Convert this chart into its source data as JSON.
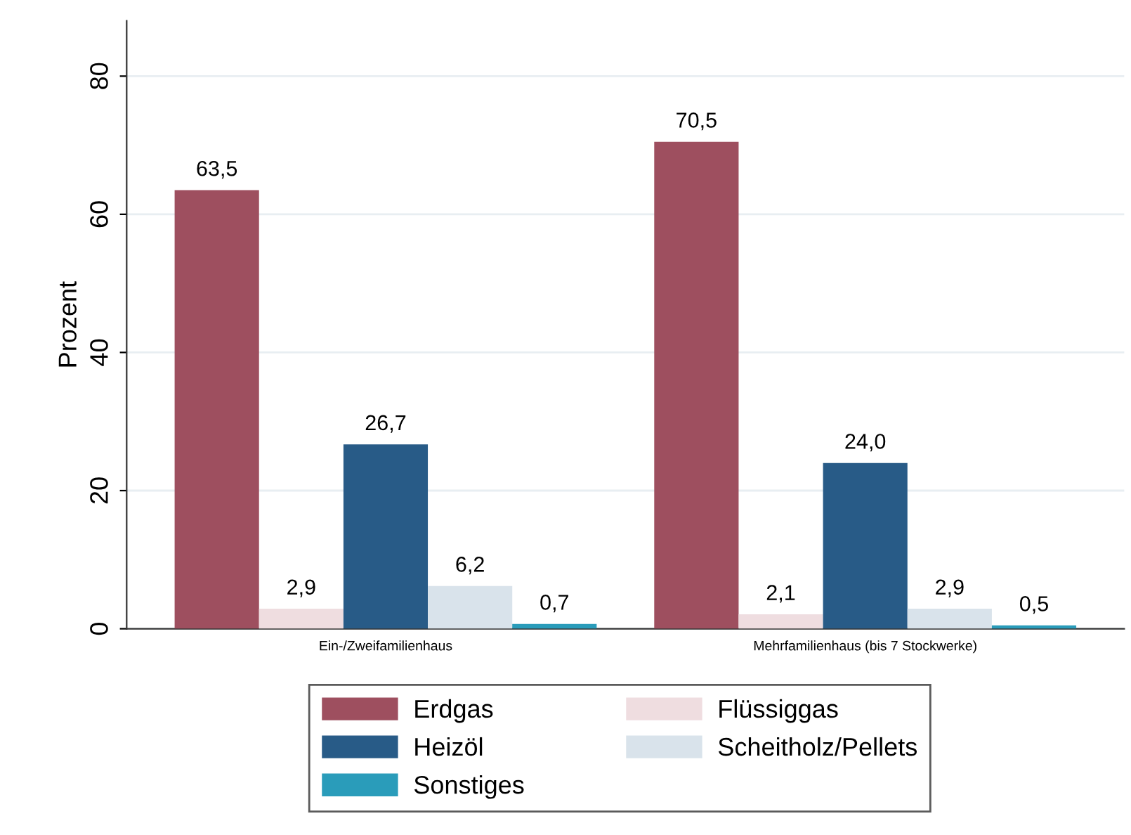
{
  "chart_data": {
    "type": "bar",
    "ylabel": "Prozent",
    "categories": [
      "Ein-/Zweifamilienhaus",
      "Mehrfamilienhaus (bis 7 Stockwerke)"
    ],
    "series": [
      {
        "name": "Erdgas",
        "color": "#9e4f5f",
        "values": [
          63.5,
          70.5
        ],
        "value_labels": [
          "63,5",
          "70,5"
        ]
      },
      {
        "name": "Flüssiggas",
        "color": "#efdde0",
        "values": [
          2.9,
          2.1
        ],
        "value_labels": [
          "2,9",
          "2,1"
        ]
      },
      {
        "name": "Heizöl",
        "color": "#285b87",
        "values": [
          26.7,
          24.0
        ],
        "value_labels": [
          "26,7",
          "24,0"
        ]
      },
      {
        "name": "Scheitholz/Pellets",
        "color": "#d9e3eb",
        "values": [
          6.2,
          2.9
        ],
        "value_labels": [
          "6,2",
          "2,9"
        ]
      },
      {
        "name": "Sonstiges",
        "color": "#2a9cba",
        "values": [
          0.7,
          0.5
        ],
        "value_labels": [
          "0,7",
          "0,5"
        ]
      }
    ],
    "ylim": [
      0,
      88
    ],
    "yticks": [
      0,
      20,
      40,
      60,
      80
    ],
    "grid": "y",
    "legend": "bottom"
  }
}
